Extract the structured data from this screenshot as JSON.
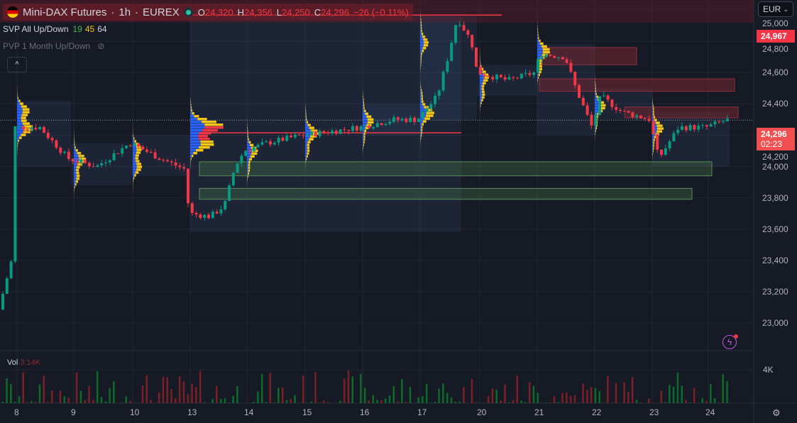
{
  "header": {
    "symbol": "Mini-DAX Futures",
    "interval": "1h",
    "exchange": "EUREX",
    "open_label": "O",
    "open": "24,320",
    "high_label": "H",
    "high": "24,356",
    "low_label": "L",
    "low": "24,250",
    "close_label": "C",
    "close": "24,296",
    "change": "−26 (−0.11%)"
  },
  "indicators": {
    "svp_name": "SVP All Up/Down",
    "svp_v1": "19",
    "svp_v2": "45",
    "svp_v3": "64",
    "pvp_name": "PVP 1 Month Up/Down",
    "collapse": "^"
  },
  "currency": "EUR",
  "price_axis": {
    "ticks": [
      "25,000",
      "24,800",
      "24,600",
      "24,400",
      "24,200",
      "24,000",
      "23,800",
      "23,600",
      "23,400",
      "23,200",
      "23,000"
    ],
    "tick_values": [
      25000,
      24800,
      24600,
      24400,
      24200,
      24000,
      23800,
      23600,
      23400,
      23200,
      23000
    ],
    "high_label": "24,967",
    "high_value": 24967,
    "last_label": "24,296",
    "last_value": 24296,
    "countdown": "02:23"
  },
  "volume": {
    "label": "Vol",
    "value": "3.14K",
    "axis_tick": "4K"
  },
  "time_axis": {
    "labels": [
      "8",
      "9",
      "10",
      "13",
      "14",
      "15",
      "16",
      "17",
      "20",
      "21",
      "22",
      "23",
      "24"
    ]
  },
  "price_path": [
    [
      0,
      23050
    ],
    [
      20,
      23400
    ],
    [
      24,
      24250
    ],
    [
      60,
      24250
    ],
    [
      100,
      24050
    ],
    [
      140,
      24000
    ],
    [
      187,
      24150
    ],
    [
      230,
      24050
    ],
    [
      265,
      23980
    ],
    [
      270,
      23700
    ],
    [
      300,
      23680
    ],
    [
      320,
      23750
    ],
    [
      335,
      24000
    ],
    [
      348,
      24100
    ],
    [
      380,
      24150
    ],
    [
      430,
      24200
    ],
    [
      480,
      24230
    ],
    [
      511,
      24250
    ],
    [
      560,
      24300
    ],
    [
      592,
      24300
    ],
    [
      620,
      24450
    ],
    [
      635,
      24700
    ],
    [
      648,
      24950
    ],
    [
      668,
      24800
    ],
    [
      676,
      24600
    ],
    [
      720,
      24550
    ],
    [
      757,
      24600
    ],
    [
      765,
      24720
    ],
    [
      800,
      24700
    ],
    [
      815,
      24500
    ],
    [
      838,
      24250
    ],
    [
      850,
      24450
    ],
    [
      880,
      24350
    ],
    [
      919,
      24300
    ],
    [
      932,
      24050
    ],
    [
      960,
      24250
    ],
    [
      998,
      24250
    ],
    [
      1028,
      24296
    ]
  ],
  "colors": {
    "up": "#089981",
    "down": "#f23645",
    "bg": "#161a25",
    "grid": "#232632",
    "accent": "#f23645"
  }
}
